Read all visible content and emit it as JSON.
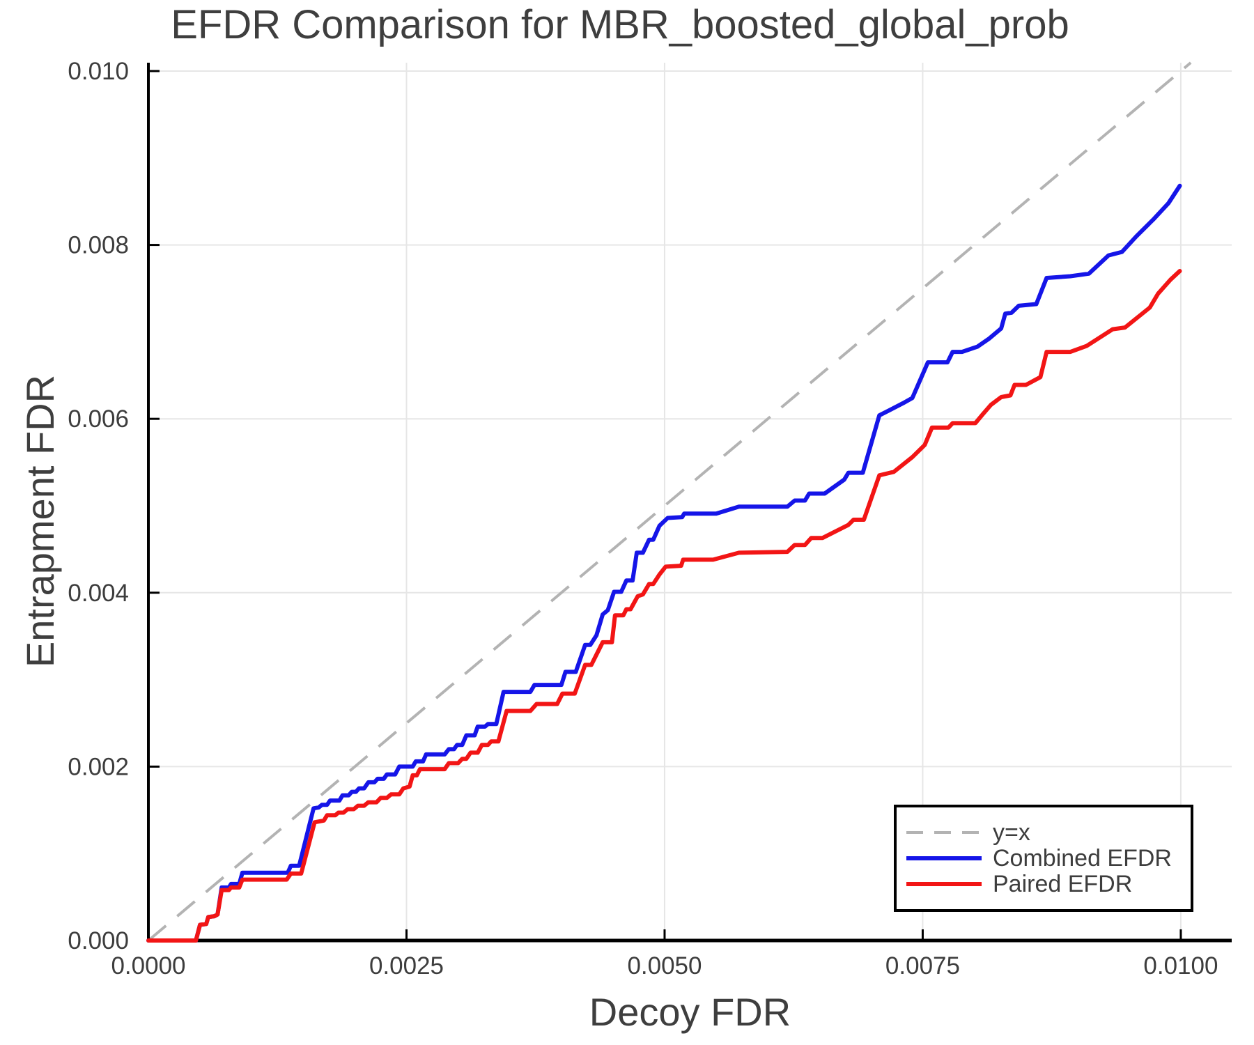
{
  "figure": {
    "background": "#ffffff"
  },
  "chart_data": {
    "type": "line",
    "title": "EFDR Comparison for MBR_boosted_global_prob",
    "xlabel": "Decoy FDR",
    "ylabel": "Entrapment FDR",
    "xlim": [
      0,
      0.010493
    ],
    "ylim": [
      0,
      0.010096
    ],
    "grid": true,
    "legend_position": "bottom-right",
    "x_ticks": [
      0,
      0.0025,
      0.005,
      0.0075,
      0.01
    ],
    "x_tick_labels": [
      "0.0000",
      "0.0025",
      "0.0050",
      "0.0075",
      "0.0100"
    ],
    "y_ticks": [
      0,
      0.002,
      0.004,
      0.006,
      0.008,
      0.01
    ],
    "y_tick_labels": [
      "0.000",
      "0.002",
      "0.004",
      "0.006",
      "0.008",
      "0.010"
    ],
    "axis_color": "#000000",
    "grid_color": "#e6e6e6",
    "text_color": "#3d3d3d",
    "reference_line": {
      "label": "y=x",
      "style": "dashed",
      "color": "#b3b3b3",
      "points": [
        [
          0,
          0
        ],
        [
          0.010096,
          0.010096
        ]
      ]
    },
    "series": [
      {
        "name": "Combined EFDR",
        "color": "#1515e8",
        "points": [
          [
            0,
            0
          ],
          [
            0.00046,
            0
          ],
          [
            0.0005,
            0.00018
          ],
          [
            0.00056,
            0.00019
          ],
          [
            0.00058,
            0.00027
          ],
          [
            0.00064,
            0.00028
          ],
          [
            0.00067,
            0.0003
          ],
          [
            0.00071,
            0.00061
          ],
          [
            0.00078,
            0.00061
          ],
          [
            0.0008,
            0.00065
          ],
          [
            0.00088,
            0.00065
          ],
          [
            0.00091,
            0.00078
          ],
          [
            0.00135,
            0.00078
          ],
          [
            0.00138,
            0.00086
          ],
          [
            0.00146,
            0.00086
          ],
          [
            0.0016,
            0.00152
          ],
          [
            0.00165,
            0.00153
          ],
          [
            0.00168,
            0.00156
          ],
          [
            0.00173,
            0.00156
          ],
          [
            0.00176,
            0.00161
          ],
          [
            0.00185,
            0.00161
          ],
          [
            0.00188,
            0.00167
          ],
          [
            0.00194,
            0.00167
          ],
          [
            0.00197,
            0.00171
          ],
          [
            0.00201,
            0.00171
          ],
          [
            0.00204,
            0.00175
          ],
          [
            0.00209,
            0.00175
          ],
          [
            0.00213,
            0.00182
          ],
          [
            0.00219,
            0.00182
          ],
          [
            0.00222,
            0.00186
          ],
          [
            0.00228,
            0.00186
          ],
          [
            0.00231,
            0.00191
          ],
          [
            0.00239,
            0.00191
          ],
          [
            0.00243,
            0.002
          ],
          [
            0.00256,
            0.002
          ],
          [
            0.00259,
            0.00206
          ],
          [
            0.00266,
            0.00206
          ],
          [
            0.00269,
            0.00214
          ],
          [
            0.00287,
            0.00214
          ],
          [
            0.00291,
            0.0022
          ],
          [
            0.00296,
            0.0022
          ],
          [
            0.00299,
            0.00225
          ],
          [
            0.00304,
            0.00225
          ],
          [
            0.00308,
            0.00236
          ],
          [
            0.00316,
            0.00236
          ],
          [
            0.00319,
            0.00246
          ],
          [
            0.00326,
            0.00246
          ],
          [
            0.00329,
            0.00249
          ],
          [
            0.00337,
            0.00249
          ],
          [
            0.00344,
            0.00286
          ],
          [
            0.0037,
            0.00286
          ],
          [
            0.00374,
            0.00294
          ],
          [
            0.004,
            0.00294
          ],
          [
            0.00404,
            0.00309
          ],
          [
            0.00414,
            0.00309
          ],
          [
            0.00423,
            0.0034
          ],
          [
            0.00428,
            0.0034
          ],
          [
            0.00434,
            0.00351
          ],
          [
            0.0044,
            0.00375
          ],
          [
            0.00445,
            0.0038
          ],
          [
            0.00451,
            0.00401
          ],
          [
            0.00458,
            0.00401
          ],
          [
            0.00463,
            0.00414
          ],
          [
            0.00469,
            0.00414
          ],
          [
            0.00473,
            0.00446
          ],
          [
            0.00479,
            0.00446
          ],
          [
            0.00485,
            0.00461
          ],
          [
            0.00489,
            0.00461
          ],
          [
            0.00495,
            0.00477
          ],
          [
            0.00503,
            0.00486
          ],
          [
            0.00517,
            0.00487
          ],
          [
            0.00519,
            0.00491
          ],
          [
            0.0055,
            0.00491
          ],
          [
            0.00572,
            0.00499
          ],
          [
            0.00619,
            0.00499
          ],
          [
            0.00626,
            0.00506
          ],
          [
            0.00636,
            0.00506
          ],
          [
            0.0064,
            0.00514
          ],
          [
            0.00655,
            0.00514
          ],
          [
            0.00674,
            0.0053
          ],
          [
            0.00678,
            0.00538
          ],
          [
            0.00692,
            0.00538
          ],
          [
            0.00708,
            0.00604
          ],
          [
            0.00718,
            0.0061
          ],
          [
            0.00731,
            0.00618
          ],
          [
            0.0074,
            0.00624
          ],
          [
            0.00755,
            0.00665
          ],
          [
            0.00774,
            0.00665
          ],
          [
            0.00779,
            0.00677
          ],
          [
            0.00788,
            0.00677
          ],
          [
            0.00803,
            0.00683
          ],
          [
            0.00814,
            0.00692
          ],
          [
            0.00826,
            0.00704
          ],
          [
            0.0083,
            0.00721
          ],
          [
            0.00836,
            0.00722
          ],
          [
            0.00843,
            0.0073
          ],
          [
            0.0086,
            0.00732
          ],
          [
            0.0087,
            0.00762
          ],
          [
            0.00893,
            0.00764
          ],
          [
            0.00911,
            0.00767
          ],
          [
            0.0093,
            0.00788
          ],
          [
            0.00943,
            0.00792
          ],
          [
            0.00957,
            0.0081
          ],
          [
            0.00974,
            0.0083
          ],
          [
            0.00988,
            0.00848
          ],
          [
            0.00999,
            0.00868
          ]
        ]
      },
      {
        "name": "Paired EFDR",
        "color": "#f21515",
        "points": [
          [
            0,
            0
          ],
          [
            0.00046,
            0
          ],
          [
            0.0005,
            0.00018
          ],
          [
            0.00056,
            0.00019
          ],
          [
            0.00058,
            0.00027
          ],
          [
            0.00064,
            0.00028
          ],
          [
            0.00067,
            0.0003
          ],
          [
            0.00071,
            0.00058
          ],
          [
            0.00078,
            0.00058
          ],
          [
            0.0008,
            0.00061
          ],
          [
            0.00088,
            0.00061
          ],
          [
            0.00091,
            0.0007
          ],
          [
            0.00134,
            0.0007
          ],
          [
            0.00138,
            0.00077
          ],
          [
            0.00148,
            0.00077
          ],
          [
            0.00161,
            0.00136
          ],
          [
            0.0017,
            0.00138
          ],
          [
            0.00173,
            0.00144
          ],
          [
            0.00181,
            0.00144
          ],
          [
            0.00184,
            0.00147
          ],
          [
            0.00189,
            0.00147
          ],
          [
            0.00193,
            0.00151
          ],
          [
            0.00199,
            0.00151
          ],
          [
            0.00203,
            0.00155
          ],
          [
            0.00209,
            0.00155
          ],
          [
            0.00213,
            0.00159
          ],
          [
            0.00221,
            0.00159
          ],
          [
            0.00225,
            0.00164
          ],
          [
            0.00231,
            0.00164
          ],
          [
            0.00235,
            0.00168
          ],
          [
            0.00243,
            0.00168
          ],
          [
            0.00247,
            0.00175
          ],
          [
            0.00253,
            0.00177
          ],
          [
            0.00256,
            0.0019
          ],
          [
            0.0026,
            0.0019
          ],
          [
            0.00263,
            0.00197
          ],
          [
            0.00287,
            0.00197
          ],
          [
            0.00291,
            0.00204
          ],
          [
            0.003,
            0.00204
          ],
          [
            0.00304,
            0.00209
          ],
          [
            0.00308,
            0.00209
          ],
          [
            0.00312,
            0.00216
          ],
          [
            0.00319,
            0.00216
          ],
          [
            0.00323,
            0.00225
          ],
          [
            0.00329,
            0.00225
          ],
          [
            0.00332,
            0.00229
          ],
          [
            0.00339,
            0.00229
          ],
          [
            0.00347,
            0.00264
          ],
          [
            0.0037,
            0.00264
          ],
          [
            0.00376,
            0.00272
          ],
          [
            0.00396,
            0.00272
          ],
          [
            0.00401,
            0.00284
          ],
          [
            0.00413,
            0.00284
          ],
          [
            0.00423,
            0.00317
          ],
          [
            0.00429,
            0.00317
          ],
          [
            0.0044,
            0.00343
          ],
          [
            0.00449,
            0.00343
          ],
          [
            0.00452,
            0.00374
          ],
          [
            0.0046,
            0.00374
          ],
          [
            0.00463,
            0.00381
          ],
          [
            0.00467,
            0.00381
          ],
          [
            0.00474,
            0.00396
          ],
          [
            0.00479,
            0.00398
          ],
          [
            0.00485,
            0.0041
          ],
          [
            0.00489,
            0.0041
          ],
          [
            0.00495,
            0.00421
          ],
          [
            0.00501,
            0.0043
          ],
          [
            0.00516,
            0.00431
          ],
          [
            0.00518,
            0.00438
          ],
          [
            0.00547,
            0.00438
          ],
          [
            0.00572,
            0.00446
          ],
          [
            0.00619,
            0.00447
          ],
          [
            0.00626,
            0.00455
          ],
          [
            0.00636,
            0.00455
          ],
          [
            0.00642,
            0.00463
          ],
          [
            0.00653,
            0.00463
          ],
          [
            0.00678,
            0.00478
          ],
          [
            0.00683,
            0.00484
          ],
          [
            0.00693,
            0.00484
          ],
          [
            0.00708,
            0.00535
          ],
          [
            0.00722,
            0.00539
          ],
          [
            0.0074,
            0.00556
          ],
          [
            0.00752,
            0.0057
          ],
          [
            0.00759,
            0.0059
          ],
          [
            0.00775,
            0.0059
          ],
          [
            0.00779,
            0.00595
          ],
          [
            0.00801,
            0.00595
          ],
          [
            0.00808,
            0.00605
          ],
          [
            0.00816,
            0.00616
          ],
          [
            0.00826,
            0.00625
          ],
          [
            0.00835,
            0.00627
          ],
          [
            0.00839,
            0.00639
          ],
          [
            0.0085,
            0.00639
          ],
          [
            0.00864,
            0.00648
          ],
          [
            0.0087,
            0.00677
          ],
          [
            0.00893,
            0.00677
          ],
          [
            0.00909,
            0.00684
          ],
          [
            0.00934,
            0.00703
          ],
          [
            0.00946,
            0.00705
          ],
          [
            0.0097,
            0.00728
          ],
          [
            0.00978,
            0.00744
          ],
          [
            0.0099,
            0.0076
          ],
          [
            0.00999,
            0.0077
          ]
        ]
      }
    ]
  }
}
